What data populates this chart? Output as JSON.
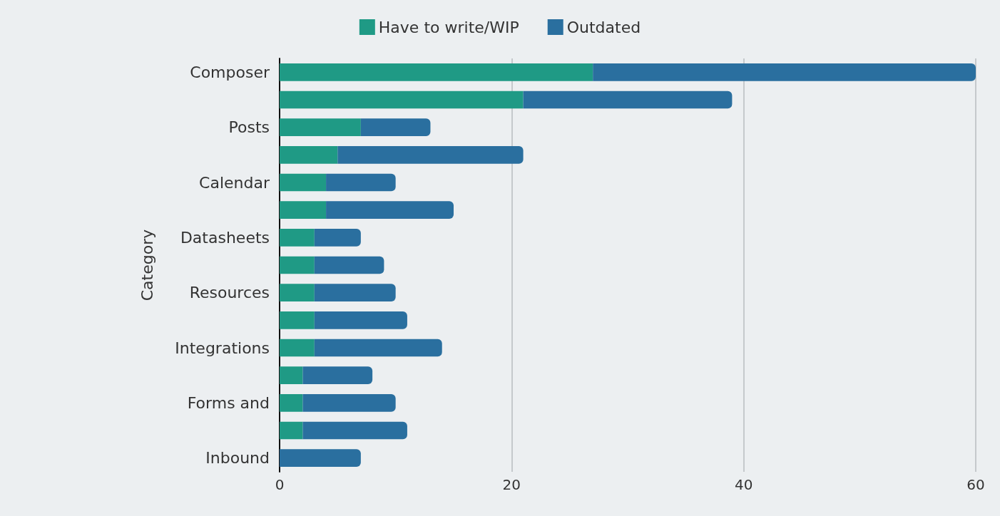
{
  "chart_data": {
    "type": "bar",
    "orientation": "horizontal",
    "stacked": true,
    "ylabel": "Category",
    "categories": [
      "Composer",
      null,
      "Posts",
      null,
      "Calendar",
      null,
      "Datasheets",
      null,
      "Resources",
      null,
      "Integrations",
      null,
      "Forms and",
      null,
      "Inbound"
    ],
    "series": [
      {
        "name": "Have to write/WIP",
        "color": "#1f9a85",
        "values": [
          27,
          21,
          7,
          5,
          4,
          4,
          3,
          3,
          3,
          3,
          3,
          2,
          2,
          2,
          0
        ]
      },
      {
        "name": "Outdated",
        "color": "#2a6f9f",
        "values": [
          33,
          18,
          6,
          16,
          6,
          11,
          4,
          6,
          7,
          8,
          11,
          6,
          8,
          9,
          7
        ]
      }
    ],
    "xlim": [
      0,
      60
    ],
    "xticks": [
      0,
      20,
      40,
      60
    ],
    "grid": "x",
    "legend": "top"
  }
}
